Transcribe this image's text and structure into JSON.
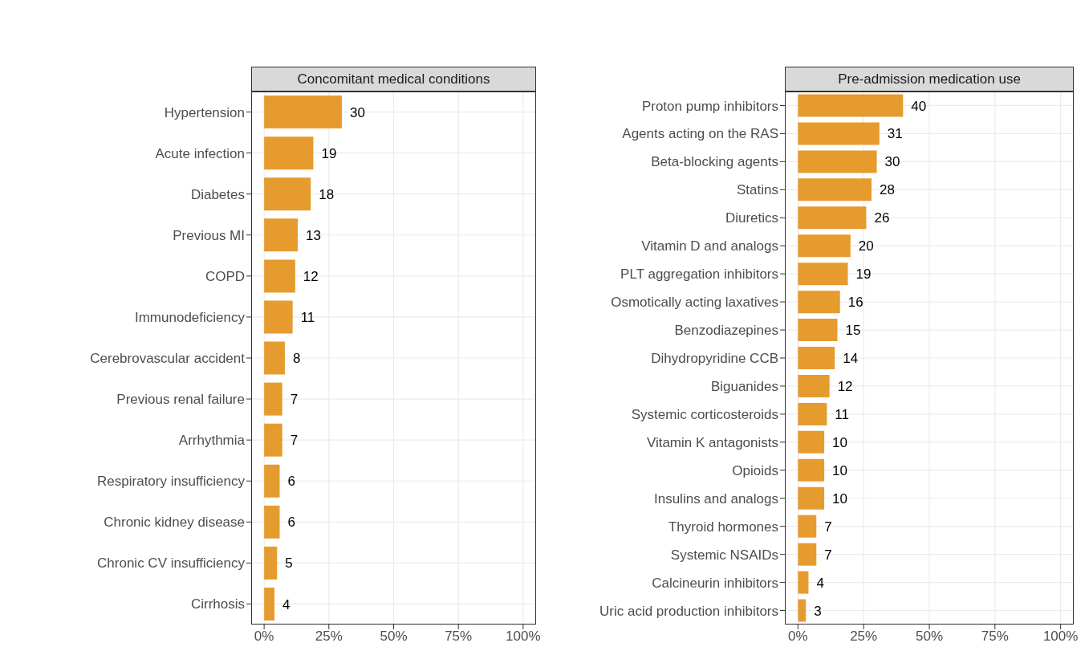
{
  "chart_data": [
    {
      "type": "bar",
      "orientation": "horizontal",
      "title": "Concomitant medical conditions",
      "categories": [
        "Hypertension",
        "Acute infection",
        "Diabetes",
        "Previous MI",
        "COPD",
        "Immunodeficiency",
        "Cerebrovascular accident",
        "Previous renal failure",
        "Arrhythmia",
        "Respiratory insufficiency",
        "Chronic kidney disease",
        "Chronic CV insufficiency",
        "Cirrhosis"
      ],
      "values": [
        30,
        19,
        18,
        13,
        12,
        11,
        8,
        7,
        7,
        6,
        6,
        5,
        4
      ],
      "color": "#e69b2f",
      "xlim": [
        -5,
        105
      ],
      "xticks": [
        {
          "value": 0,
          "label": "0%"
        },
        {
          "value": 25,
          "label": "25%"
        },
        {
          "value": 50,
          "label": "50%"
        },
        {
          "value": 75,
          "label": "75%"
        },
        {
          "value": 100,
          "label": "100%"
        }
      ],
      "grid": true,
      "data_labels": true
    },
    {
      "type": "bar",
      "orientation": "horizontal",
      "title": "Pre-admission medication use",
      "categories": [
        "Proton pump inhibitors",
        "Agents acting on the RAS",
        "Beta-blocking agents",
        "Statins",
        "Diuretics",
        "Vitamin D and analogs",
        "PLT aggregation inhibitors",
        "Osmotically acting laxatives",
        "Benzodiazepines",
        "Dihydropyridine CCB",
        "Biguanides",
        "Systemic corticosteroids",
        "Vitamin K antagonists",
        "Opioids",
        "Insulins and analogs",
        "Thyroid hormones",
        "Systemic NSAIDs",
        "Calcineurin inhibitors",
        "Uric acid production inhibitors"
      ],
      "values": [
        40,
        31,
        30,
        28,
        26,
        20,
        19,
        16,
        15,
        14,
        12,
        11,
        10,
        10,
        10,
        7,
        7,
        4,
        3
      ],
      "color": "#e69b2f",
      "xlim": [
        -5,
        105
      ],
      "xticks": [
        {
          "value": 0,
          "label": "0%"
        },
        {
          "value": 25,
          "label": "25%"
        },
        {
          "value": 50,
          "label": "50%"
        },
        {
          "value": 75,
          "label": "75%"
        },
        {
          "value": 100,
          "label": "100%"
        }
      ],
      "grid": true,
      "data_labels": true
    }
  ]
}
